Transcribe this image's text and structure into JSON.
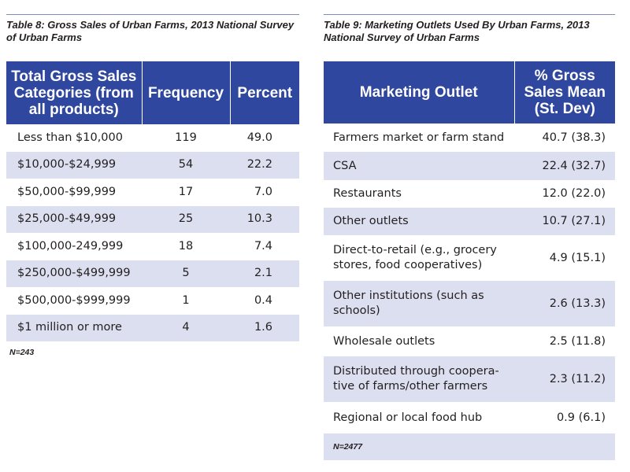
{
  "colors": {
    "header_bg": "#2f479e",
    "header_text": "#ffffff",
    "stripe_bg": "#dcdff0",
    "rule": "#7a8fc0"
  },
  "table8": {
    "caption": "Table 8: Gross Sales of Urban Farms, 2013 National Survey of Urban Farms",
    "headers": [
      "Total Gross Sales Categories (from all products)",
      "Frequency",
      "Percent"
    ],
    "rows": [
      [
        "Less than $10,000",
        "119",
        "49.0"
      ],
      [
        "$10,000-$24,999",
        "54",
        "22.2"
      ],
      [
        "$50,000-$99,999",
        "17",
        "7.0"
      ],
      [
        "$25,000-$49,999",
        "25",
        "10.3"
      ],
      [
        "$100,000-249,999",
        "18",
        "7.4"
      ],
      [
        "$250,000-$499,999",
        "5",
        "2.1"
      ],
      [
        "$500,000-$999,999",
        "1",
        "0.4"
      ],
      [
        "$1 million or more",
        "4",
        "1.6"
      ]
    ],
    "note": "N=243"
  },
  "table9": {
    "caption": "Table 9: Marketing Outlets Used By Urban Farms, 2013 National Survey of Urban Farms",
    "headers": [
      "Marketing Outlet",
      "% Gross Sales Mean (St. Dev)"
    ],
    "rows": [
      [
        "Farmers market or farm stand",
        "40.7 (38.3)"
      ],
      [
        "CSA",
        "22.4 (32.7)"
      ],
      [
        "Restaurants",
        "12.0 (22.0)"
      ],
      [
        "Other outlets",
        "10.7 (27.1)"
      ],
      [
        "Direct-to-retail (e.g., grocery stores, food cooperatives)",
        "4.9 (15.1)"
      ],
      [
        "Other institutions (such as schools)",
        "2.6 (13.3)"
      ],
      [
        "Wholesale outlets",
        "2.5 (11.8)"
      ],
      [
        "Distributed through coopera-tive of farms/other farmers",
        "2.3 (11.2)"
      ],
      [
        "Regional or local food hub",
        "0.9 (6.1)"
      ]
    ],
    "note": "N=2477"
  }
}
